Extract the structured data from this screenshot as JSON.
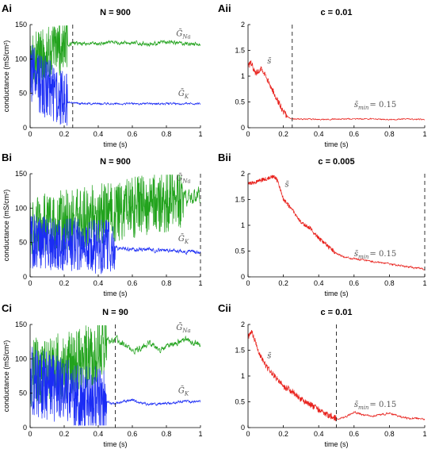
{
  "chart_data": [
    {
      "id": "Ai",
      "label": "Ai",
      "title": "N = 900",
      "type": "line",
      "xlabel": "time (s)",
      "ylabel": "conductance (mS/cm²)",
      "xlim": [
        0,
        1
      ],
      "ylim": [
        0,
        150
      ],
      "xticks": [
        0,
        0.2,
        0.4,
        0.6,
        0.8,
        1
      ],
      "xtick_labels": [
        "0",
        "0.2",
        "0.4",
        "0.6",
        "0.8",
        "1"
      ],
      "yticks": [
        0,
        50,
        100,
        150
      ],
      "ytick_labels": [
        "0",
        "50",
        "100",
        "150"
      ],
      "vline": 0.25,
      "series": [
        {
          "color": "#22a31d",
          "x": [
            0,
            0.03,
            0.06,
            0.1,
            0.15,
            0.2,
            0.22,
            0.25,
            0.3,
            0.4,
            0.5,
            0.6,
            0.7,
            0.8,
            0.9,
            1.0
          ],
          "y": [
            95,
            100,
            105,
            108,
            112,
            118,
            121,
            123,
            123,
            122,
            124,
            123,
            122,
            124,
            123,
            121
          ],
          "noise_early": 40,
          "noise_late": 3,
          "noise_until": 0.22
        },
        {
          "color": "#1b2cf5",
          "x": [
            0,
            0.03,
            0.06,
            0.1,
            0.15,
            0.2,
            0.22,
            0.25,
            0.3,
            0.4,
            0.5,
            0.6,
            0.7,
            0.8,
            0.9,
            1.0
          ],
          "y": [
            80,
            72,
            65,
            57,
            48,
            40,
            37,
            36,
            35,
            35,
            35,
            35,
            35,
            35,
            35,
            35
          ],
          "noise_early": 45,
          "noise_late": 1.5,
          "noise_until": 0.22
        }
      ],
      "annotations": [
        {
          "text": "Ḡ_Na",
          "base": "Ḡ",
          "sub": "Na",
          "x": 0.9,
          "y": 133
        },
        {
          "text": "Ḡ_K",
          "base": "Ḡ",
          "sub": "K",
          "x": 0.9,
          "y": 46
        }
      ]
    },
    {
      "id": "Aii",
      "label": "Aii",
      "title": "c = 0.01",
      "type": "line",
      "xlabel": "time (s)",
      "ylabel": "",
      "xlim": [
        0,
        1
      ],
      "ylim": [
        0,
        2
      ],
      "xticks": [
        0,
        0.2,
        0.4,
        0.6,
        0.8,
        1
      ],
      "xtick_labels": [
        "0",
        "0.2",
        "0.4",
        "0.6",
        "0.8",
        "1"
      ],
      "yticks": [
        0,
        0.5,
        1,
        1.5,
        2
      ],
      "ytick_labels": [
        "0",
        "0.5",
        "1",
        "1.5",
        "2"
      ],
      "vline": 0.25,
      "series": [
        {
          "color": "#e8211c",
          "x": [
            0,
            0.02,
            0.04,
            0.06,
            0.08,
            0.1,
            0.12,
            0.15,
            0.18,
            0.2,
            0.23,
            0.25,
            0.3,
            0.4,
            0.5,
            0.6,
            0.7,
            0.8,
            0.9,
            1.0
          ],
          "y": [
            1.2,
            1.25,
            1.05,
            1.1,
            1.15,
            1.0,
            0.85,
            0.65,
            0.45,
            0.3,
            0.2,
            0.17,
            0.17,
            0.16,
            0.17,
            0.17,
            0.17,
            0.16,
            0.17,
            0.16
          ],
          "noise_early": 0.06,
          "noise_late": 0.012,
          "noise_until": 0.22
        }
      ],
      "annotations": [
        {
          "text": "s̄",
          "base": "s̄",
          "sub": "",
          "x": 0.12,
          "y": 1.25
        },
        {
          "text": "s̄_min = 0.15",
          "base": "s̄",
          "sub": "min",
          "tail": "= 0.15",
          "x": 0.72,
          "y": 0.4
        }
      ]
    },
    {
      "id": "Bi",
      "label": "Bi",
      "title": "N = 900",
      "type": "line",
      "xlabel": "time (s)",
      "ylabel": "conductance (mS/cm²)",
      "xlim": [
        0,
        1
      ],
      "ylim": [
        0,
        150
      ],
      "xticks": [
        0,
        0.2,
        0.4,
        0.6,
        0.8,
        1
      ],
      "xtick_labels": [
        "0",
        "0.2",
        "0.4",
        "0.6",
        "0.8",
        "1"
      ],
      "yticks": [
        0,
        50,
        100,
        150
      ],
      "ytick_labels": [
        "0",
        "50",
        "100",
        "150"
      ],
      "vline": 1.0,
      "series": [
        {
          "color": "#22a31d",
          "x": [
            0,
            0.1,
            0.2,
            0.3,
            0.4,
            0.5,
            0.6,
            0.7,
            0.8,
            0.9,
            1.0
          ],
          "y": [
            75,
            78,
            82,
            86,
            90,
            95,
            100,
            105,
            110,
            115,
            120
          ],
          "noise_early": 45,
          "noise_late": 12,
          "noise_until": 0.9
        },
        {
          "color": "#1b2cf5",
          "x": [
            0,
            0.1,
            0.2,
            0.3,
            0.4,
            0.5,
            0.6,
            0.7,
            0.8,
            0.9,
            1.0
          ],
          "y": [
            52,
            50,
            48,
            46,
            44,
            42,
            40,
            39,
            38,
            37,
            36
          ],
          "noise_early": 40,
          "noise_late": 3,
          "noise_until": 0.5
        }
      ],
      "annotations": [
        {
          "text": "Ḡ_Na",
          "base": "Ḡ",
          "sub": "Na",
          "x": 0.9,
          "y": 140
        },
        {
          "text": "Ḡ_K",
          "base": "Ḡ",
          "sub": "K",
          "x": 0.9,
          "y": 52
        }
      ]
    },
    {
      "id": "Bii",
      "label": "Bii",
      "title": "c = 0.005",
      "type": "line",
      "xlabel": "time (s)",
      "ylabel": "",
      "xlim": [
        0,
        1
      ],
      "ylim": [
        0,
        2
      ],
      "xticks": [
        0,
        0.2,
        0.4,
        0.6,
        0.8,
        1
      ],
      "xtick_labels": [
        "0",
        "0.2",
        "0.4",
        "0.6",
        "0.8",
        "1"
      ],
      "yticks": [
        0,
        0.5,
        1,
        1.5,
        2
      ],
      "ytick_labels": [
        "0",
        "0.5",
        "1",
        "1.5",
        "2"
      ],
      "vline": 1.0,
      "series": [
        {
          "color": "#e8211c",
          "x": [
            0,
            0.05,
            0.1,
            0.15,
            0.17,
            0.2,
            0.25,
            0.3,
            0.35,
            0.4,
            0.45,
            0.5,
            0.55,
            0.6,
            0.7,
            0.8,
            0.9,
            1.0
          ],
          "y": [
            1.8,
            1.85,
            1.9,
            1.95,
            1.85,
            1.5,
            1.3,
            1.05,
            0.95,
            0.75,
            0.6,
            0.45,
            0.38,
            0.35,
            0.3,
            0.25,
            0.2,
            0.15
          ],
          "noise_early": 0.04,
          "noise_late": 0.02,
          "noise_until": 0.5
        }
      ],
      "annotations": [
        {
          "text": "s̄",
          "base": "s̄",
          "sub": "",
          "x": 0.22,
          "y": 1.75
        },
        {
          "text": "s̄_min = 0.15",
          "base": "s̄",
          "sub": "min",
          "tail": "= 0.15",
          "x": 0.72,
          "y": 0.4
        }
      ]
    },
    {
      "id": "Ci",
      "label": "Ci",
      "title": "N = 90",
      "type": "line",
      "xlabel": "time (s)",
      "ylabel": "conductance (mS/cm²)",
      "xlim": [
        0,
        1
      ],
      "ylim": [
        0,
        150
      ],
      "xticks": [
        0,
        0.2,
        0.4,
        0.6,
        0.8,
        1
      ],
      "xtick_labels": [
        "0",
        "0.2",
        "0.4",
        "0.6",
        "0.8",
        "1"
      ],
      "yticks": [
        0,
        50,
        100,
        150
      ],
      "ytick_labels": [
        "0",
        "50",
        "100",
        "150"
      ],
      "vline": 0.5,
      "series": [
        {
          "color": "#22a31d",
          "x": [
            0,
            0.1,
            0.2,
            0.3,
            0.4,
            0.45,
            0.5,
            0.55,
            0.6,
            0.65,
            0.7,
            0.75,
            0.8,
            0.9,
            1.0
          ],
          "y": [
            80,
            85,
            90,
            100,
            115,
            125,
            130,
            122,
            110,
            115,
            125,
            112,
            118,
            128,
            123
          ],
          "noise_early": 50,
          "noise_late": 5,
          "noise_until": 0.45
        },
        {
          "color": "#1b2cf5",
          "x": [
            0,
            0.1,
            0.2,
            0.3,
            0.4,
            0.45,
            0.5,
            0.55,
            0.6,
            0.65,
            0.7,
            0.8,
            0.9,
            1.0
          ],
          "y": [
            70,
            60,
            52,
            45,
            40,
            37,
            35,
            38,
            40,
            36,
            34,
            35,
            38,
            37
          ],
          "noise_early": 50,
          "noise_late": 2,
          "noise_until": 0.45
        }
      ],
      "annotations": [
        {
          "text": "Ḡ_Na",
          "base": "Ḡ",
          "sub": "Na",
          "x": 0.9,
          "y": 142
        },
        {
          "text": "Ḡ_K",
          "base": "Ḡ",
          "sub": "K",
          "x": 0.9,
          "y": 50
        }
      ]
    },
    {
      "id": "Cii",
      "label": "Cii",
      "title": "c = 0.01",
      "type": "line",
      "xlabel": "time (s)",
      "ylabel": "",
      "xlim": [
        0,
        1
      ],
      "ylim": [
        0,
        2
      ],
      "xticks": [
        0,
        0.2,
        0.4,
        0.6,
        0.8,
        1
      ],
      "xtick_labels": [
        "0",
        "0.2",
        "0.4",
        "0.6",
        "0.8",
        "1"
      ],
      "yticks": [
        0,
        0.5,
        1,
        1.5,
        2
      ],
      "ytick_labels": [
        "0",
        "0.5",
        "1",
        "1.5",
        "2"
      ],
      "vline": 0.5,
      "series": [
        {
          "color": "#e8211c",
          "x": [
            0,
            0.02,
            0.04,
            0.06,
            0.1,
            0.15,
            0.2,
            0.25,
            0.3,
            0.35,
            0.4,
            0.45,
            0.5,
            0.55,
            0.6,
            0.65,
            0.7,
            0.8,
            0.9,
            1.0
          ],
          "y": [
            1.75,
            1.85,
            1.7,
            1.45,
            1.2,
            1.0,
            0.8,
            0.7,
            0.55,
            0.45,
            0.35,
            0.25,
            0.18,
            0.2,
            0.3,
            0.25,
            0.22,
            0.28,
            0.18,
            0.17
          ],
          "noise_early": 0.06,
          "noise_late": 0.02,
          "noise_until": 0.5
        }
      ],
      "annotations": [
        {
          "text": "s̄",
          "base": "s̄",
          "sub": "",
          "x": 0.12,
          "y": 1.35
        },
        {
          "text": "s̄_min = 0.15",
          "base": "s̄",
          "sub": "min",
          "tail": "= 0.15",
          "x": 0.72,
          "y": 0.4
        }
      ]
    }
  ]
}
